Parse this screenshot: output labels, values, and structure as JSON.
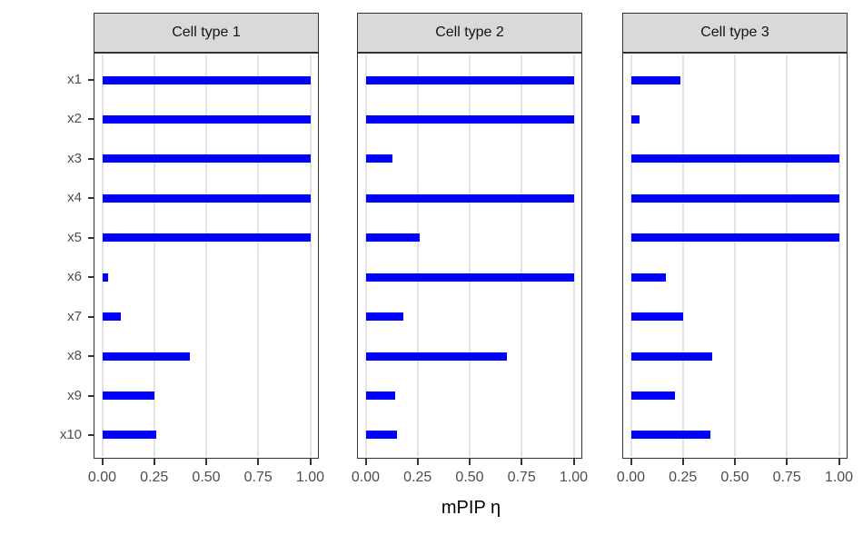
{
  "figure": {
    "background": "#FFFFFF"
  },
  "chart_data": {
    "type": "bar",
    "orientation": "horizontal",
    "xlabel": "mPIP η",
    "categories": [
      "x1",
      "x2",
      "x3",
      "x4",
      "x5",
      "x6",
      "x7",
      "x8",
      "x9",
      "x10"
    ],
    "x_tick_labels": [
      "0.00",
      "0.25",
      "0.50",
      "0.75",
      "1.00"
    ],
    "x_tick_values": [
      0,
      0.25,
      0.5,
      0.75,
      1.0
    ],
    "xlim": [
      0,
      1
    ],
    "grid": "vertical-major-only",
    "legend": "none",
    "bar_color": "#0000FF",
    "facets": [
      {
        "label": "Cell type 1",
        "values": [
          1.0,
          1.0,
          1.0,
          1.0,
          1.0,
          0.03,
          0.09,
          0.42,
          0.25,
          0.26
        ]
      },
      {
        "label": "Cell type 2",
        "values": [
          1.0,
          1.0,
          0.13,
          1.0,
          0.26,
          1.0,
          0.18,
          0.68,
          0.14,
          0.15
        ]
      },
      {
        "label": "Cell type 3",
        "values": [
          0.24,
          0.04,
          1.0,
          1.0,
          1.0,
          0.17,
          0.25,
          0.39,
          0.21,
          0.38
        ]
      }
    ],
    "style": {
      "strip_bg": "#D9D9D9",
      "border": "#333333",
      "gridline": "#E3E3E3",
      "axis_text": "#4D4D4D",
      "tick_color": "#333333"
    }
  }
}
